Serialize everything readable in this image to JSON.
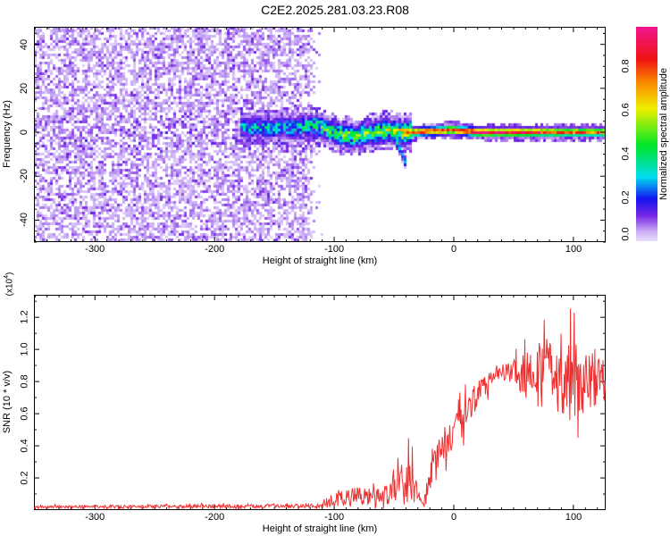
{
  "title": "C2E2.2025.281.03.23.R08",
  "chart_data": [
    {
      "type": "heatmap",
      "title": "C2E2.2025.281.03.23.R08",
      "xlabel": "Height of straight line (km)",
      "ylabel": "Frequency (Hz)",
      "xlim": [
        -351,
        127
      ],
      "ylim": [
        -50,
        48
      ],
      "xticks": [
        -300,
        -200,
        -100,
        0,
        100
      ],
      "yticks": [
        -40,
        -20,
        0,
        20,
        40
      ],
      "colorbar": {
        "label": "Normalized spectral amplitude",
        "range": [
          0,
          0.98
        ],
        "ticks": [
          "0.0",
          "0.2",
          "0.4",
          "0.6",
          "0.8"
        ],
        "tick_values": [
          0,
          0.2,
          0.4,
          0.6,
          0.8
        ]
      },
      "noise_region": {
        "x_from": -351,
        "x_to": -125,
        "fade_to": -110,
        "level": 0.1
      },
      "ridge": {
        "x": [
          -178,
          -165,
          -150,
          -130,
          -115,
          -105,
          -95,
          -85,
          -75,
          -65,
          -55,
          -45,
          -38,
          -35,
          0,
          20,
          60,
          80,
          127
        ],
        "freq": [
          2,
          2,
          2,
          2,
          3,
          1,
          -1,
          -2,
          -1,
          0,
          1,
          0,
          0,
          0,
          1,
          0,
          0,
          0,
          0
        ],
        "amplitude": [
          0.25,
          0.3,
          0.3,
          0.3,
          0.35,
          0.4,
          0.45,
          0.45,
          0.45,
          0.45,
          0.5,
          0.55,
          0.6,
          0.8,
          0.85,
          0.95,
          0.95,
          0.8,
          0.75
        ]
      },
      "branch": {
        "x": [
          -48,
          -40
        ],
        "freq": [
          -4,
          -14
        ],
        "amplitude": 0.4
      }
    },
    {
      "type": "line",
      "xlabel": "Height of straight line (km)",
      "ylabel": "SNR (10 * v/v)",
      "y_multiplier": "(x10",
      "y_multiplier_exp": "4",
      "y_multiplier_close": ")",
      "xlim": [
        -351,
        127
      ],
      "ylim": [
        0,
        1.34
      ],
      "xticks": [
        -300,
        -200,
        -100,
        0,
        100
      ],
      "yticks": [
        "0.2",
        "0.4",
        "0.6",
        "0.8",
        "1.0",
        "1.2"
      ],
      "ytick_values": [
        0.2,
        0.4,
        0.6,
        0.8,
        1.0,
        1.2
      ],
      "color": "#f03030",
      "series": [
        {
          "name": "SNR",
          "x": [
            -351,
            -120,
            -105,
            -95,
            -80,
            -65,
            -55,
            -48,
            -42,
            -35,
            -30,
            -25,
            -22,
            -15,
            -5,
            0,
            10,
            20,
            30,
            40,
            50,
            60,
            70,
            85,
            100,
            115,
            127
          ],
          "mean": [
            0.02,
            0.025,
            0.04,
            0.07,
            0.09,
            0.08,
            0.1,
            0.2,
            0.15,
            0.2,
            0.08,
            0.03,
            0.15,
            0.35,
            0.45,
            0.5,
            0.6,
            0.72,
            0.8,
            0.85,
            0.88,
            0.85,
            0.85,
            0.82,
            0.82,
            0.8,
            0.8
          ],
          "spread": [
            0.01,
            0.015,
            0.03,
            0.06,
            0.07,
            0.06,
            0.08,
            0.18,
            0.15,
            0.2,
            0.06,
            0.02,
            0.1,
            0.12,
            0.12,
            0.12,
            0.12,
            0.1,
            0.07,
            0.07,
            0.1,
            0.2,
            0.3,
            0.3,
            0.3,
            0.3,
            0.15
          ]
        }
      ]
    }
  ]
}
